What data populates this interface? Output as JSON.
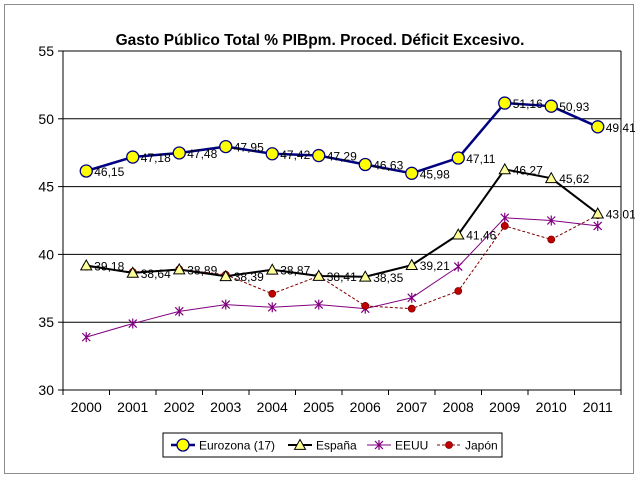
{
  "colors": {
    "eurozona": "#000080",
    "eurozona_marker": "#ffff00",
    "espana": "#000000",
    "espana_marker": "#ffff99",
    "eeuu": "#800080",
    "japon": "#800000",
    "japon_marker": "#c00000",
    "grid": "#000000",
    "plot_bg": "#ffffff"
  },
  "chart_data": {
    "type": "line",
    "title": "Gasto Público Total % PIBpm. Proced. Déficit Excesivo.",
    "xlabel": "",
    "ylabel": "",
    "ylim": [
      30,
      55
    ],
    "yticks": [
      30,
      35,
      40,
      45,
      50,
      55
    ],
    "grid": true,
    "legend_position": "bottom",
    "categories": [
      "2000",
      "2001",
      "2002",
      "2003",
      "2004",
      "2005",
      "2006",
      "2007",
      "2008",
      "2009",
      "2010",
      "2011"
    ],
    "series": [
      {
        "key": "eurozona",
        "name": "Eurozona (17)",
        "marker": "circle",
        "values": [
          46.15,
          47.18,
          47.48,
          47.95,
          47.42,
          47.29,
          46.63,
          45.98,
          47.11,
          51.16,
          50.93,
          49.41
        ],
        "labels": [
          "46,15",
          "47,18",
          "47,48",
          "47,95",
          "47,42",
          "47,29",
          "46,63",
          "45,98",
          "47,11",
          "51,16",
          "50,93",
          "49,41"
        ]
      },
      {
        "key": "espana",
        "name": "España",
        "marker": "triangle",
        "values": [
          39.18,
          38.64,
          38.89,
          38.39,
          38.87,
          38.41,
          38.35,
          39.21,
          41.46,
          46.27,
          45.62,
          43.01
        ],
        "labels": [
          "39,18",
          "38,64",
          "38,89",
          "38,39",
          "38,87",
          "38,41",
          "38,35",
          "39,21",
          "41,46",
          "46,27",
          "45,62",
          "43,01"
        ]
      },
      {
        "key": "eeuu",
        "name": "EEUU",
        "marker": "star",
        "values": [
          33.9,
          34.9,
          35.8,
          36.3,
          36.1,
          36.3,
          36.0,
          36.8,
          39.1,
          42.7,
          42.5,
          42.1
        ],
        "labels": []
      },
      {
        "key": "japon",
        "name": "Japón",
        "marker": "dot",
        "values": [
          39.1,
          38.7,
          38.9,
          38.5,
          37.1,
          38.4,
          36.2,
          36.0,
          37.3,
          42.1,
          41.1,
          42.9
        ],
        "labels": []
      }
    ]
  }
}
